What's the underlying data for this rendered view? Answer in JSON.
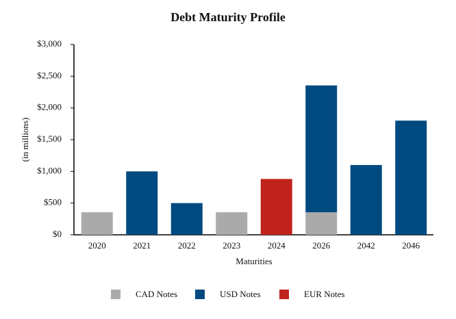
{
  "chart_data": {
    "type": "stacked-bar",
    "title": "Debt Maturity Profile",
    "x_label": "Maturities",
    "y_label": "(in millions)",
    "categories": [
      "2020",
      "2021",
      "2022",
      "2023",
      "2024",
      "2026",
      "2042",
      "2046"
    ],
    "series": [
      {
        "name": "CAD Notes",
        "color": "#aaaaaa",
        "values": [
          355,
          null,
          null,
          355,
          null,
          355,
          null,
          null
        ]
      },
      {
        "name": "USD Notes",
        "color": "#004a80",
        "values": [
          null,
          1000,
          500,
          null,
          null,
          2000,
          1100,
          1800
        ]
      },
      {
        "name": "EUR Notes",
        "color": "#c0231b",
        "values": [
          null,
          null,
          null,
          null,
          880,
          null,
          null,
          null
        ]
      }
    ],
    "ylim": [
      0,
      3000
    ],
    "yticks": [
      {
        "value": 0,
        "label": "$0"
      },
      {
        "value": 500,
        "label": "$500"
      },
      {
        "value": 1000,
        "label": "$1,000"
      },
      {
        "value": 1500,
        "label": "$1,500"
      },
      {
        "value": 2000,
        "label": "$2,000"
      },
      {
        "value": 2500,
        "label": "$2,500"
      },
      {
        "value": 3000,
        "label": "$3,000"
      }
    ],
    "legend": "bottom"
  }
}
